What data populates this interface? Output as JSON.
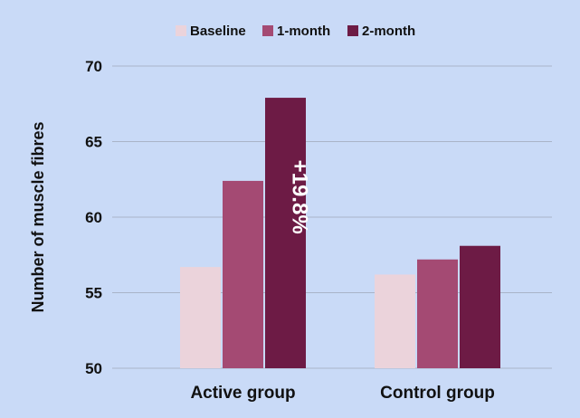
{
  "chart_data": {
    "type": "bar",
    "categories": [
      "Active group",
      "Control group"
    ],
    "series": [
      {
        "name": "Baseline",
        "values": [
          56.7,
          56.2
        ],
        "color": "#ebd3db"
      },
      {
        "name": "1-month",
        "values": [
          62.4,
          57.2
        ],
        "color": "#a44a73"
      },
      {
        "name": "2-month",
        "values": [
          67.9,
          58.1
        ],
        "color": "#6d1b45"
      }
    ],
    "ylabel": "Number of muscle fibres",
    "xlabel": "",
    "ylim": [
      50,
      70
    ],
    "yticks": [
      50,
      55,
      60,
      65,
      70
    ],
    "grid": true,
    "legend_position": "top-center",
    "annotations": [
      {
        "text": "+19.8%",
        "category": "Active group",
        "series": "2-month"
      }
    ]
  }
}
